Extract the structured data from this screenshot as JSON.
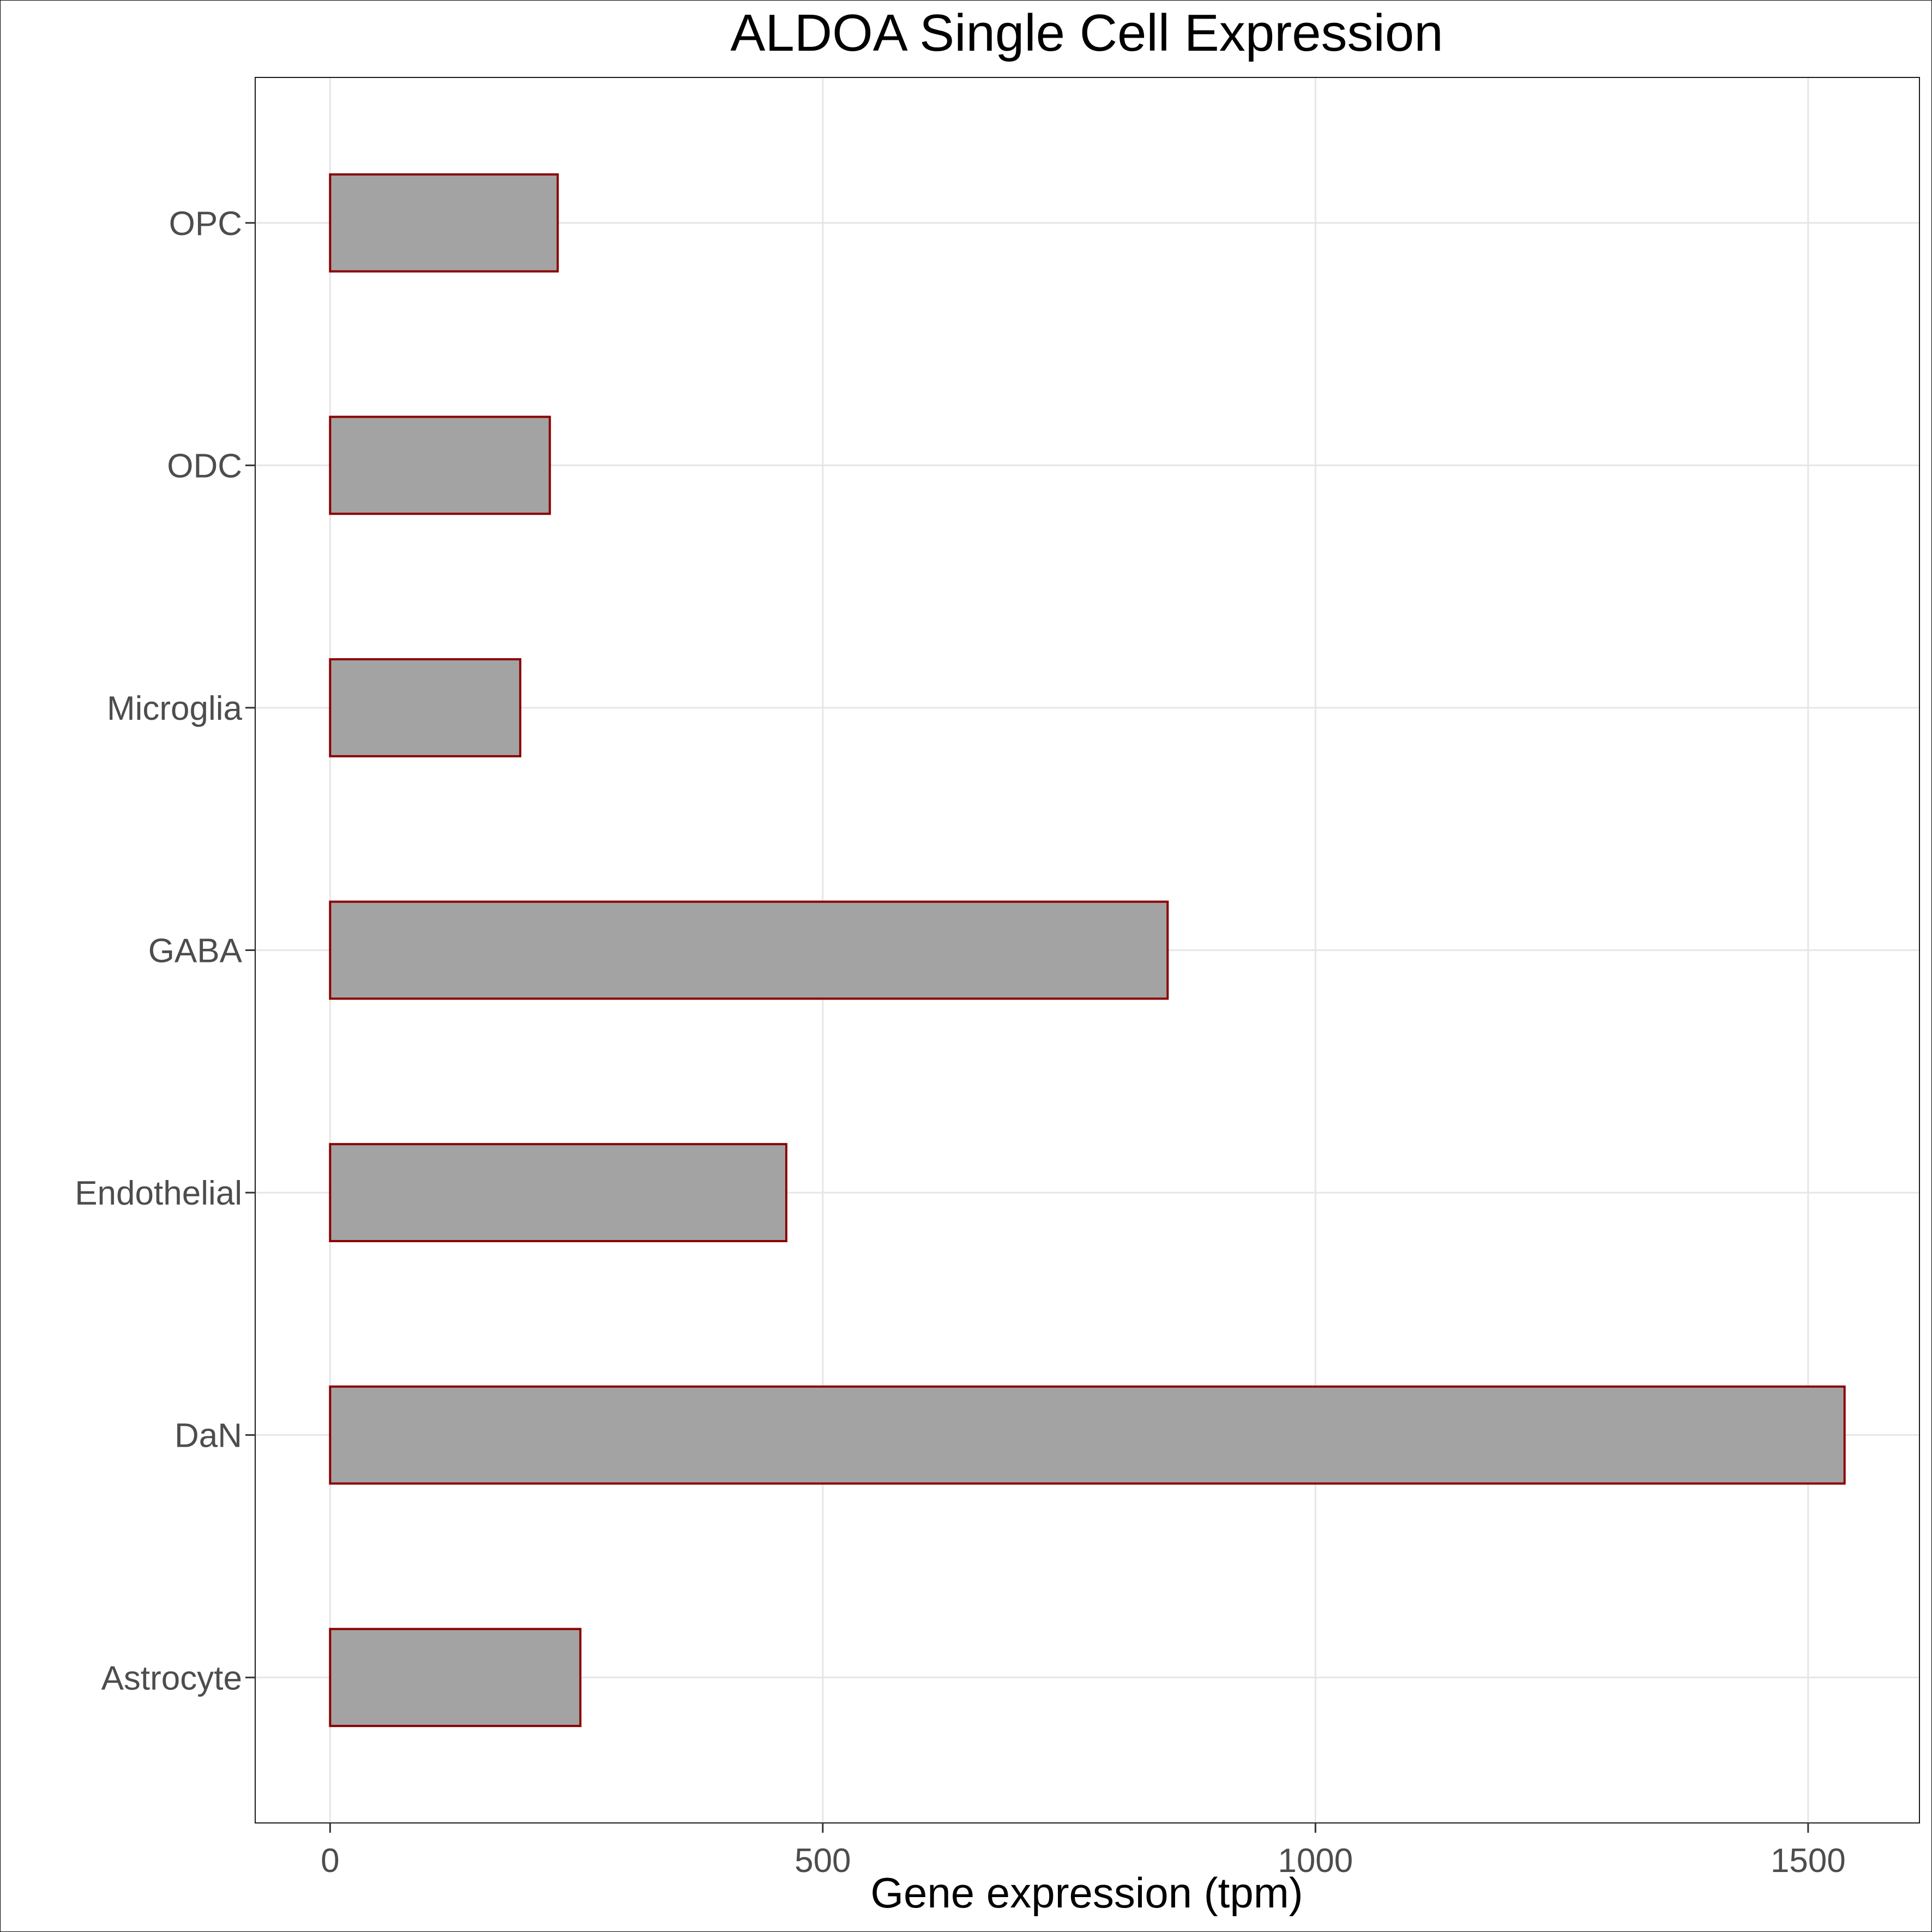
{
  "chart_data": {
    "type": "bar",
    "orientation": "horizontal",
    "title": "ALDOA Single Cell Expression",
    "xlabel": "Gene expression (tpm)",
    "ylabel": "",
    "categories": [
      "Astrocyte",
      "DaN",
      "Endothelial",
      "GABA",
      "Microglia",
      "ODC",
      "OPC"
    ],
    "values": [
      254,
      1537,
      463,
      850,
      193,
      223,
      231
    ],
    "xlim": [
      -76,
      1613
    ],
    "xticks": [
      0,
      500,
      1000,
      1500
    ],
    "grid": true,
    "legend": "none",
    "colors": {
      "bar_fill": "#a3a3a3",
      "bar_stroke": "#8b0000",
      "grid": "#e6e6e6",
      "panel_border": "#1a1a1a"
    }
  }
}
